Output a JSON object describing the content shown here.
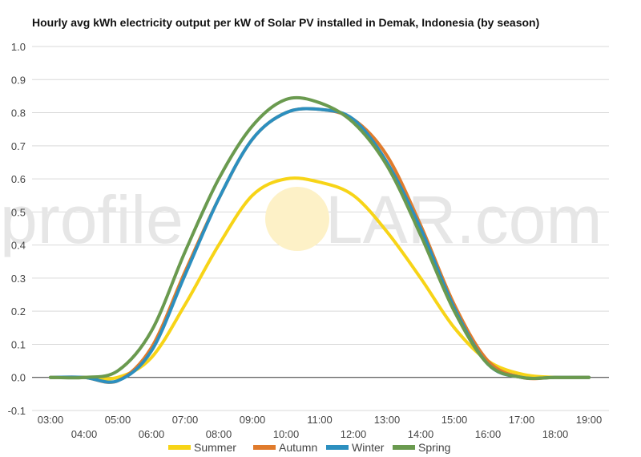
{
  "watermark": {
    "before": "profile",
    "after": "LAR.com",
    "sun_color": "#fdf1c7"
  },
  "chart_data": {
    "type": "line",
    "title": "Hourly avg kWh electricity output per kW of Solar PV installed in Demak, Indonesia (by season)",
    "xlabel": "",
    "ylabel": "",
    "x": [
      "03:00",
      "04:00",
      "05:00",
      "06:00",
      "07:00",
      "08:00",
      "09:00",
      "10:00",
      "11:00",
      "12:00",
      "13:00",
      "14:00",
      "15:00",
      "16:00",
      "17:00",
      "18:00",
      "19:00"
    ],
    "ylim": [
      -0.1,
      1.0
    ],
    "yticks": [
      "-0.1",
      "0.0",
      "0.1",
      "0.2",
      "0.3",
      "0.4",
      "0.5",
      "0.6",
      "0.7",
      "0.8",
      "0.9",
      "1.0"
    ],
    "grid": true,
    "legend_position": "bottom",
    "series": [
      {
        "name": "Summer",
        "color": "#f7d417",
        "values": [
          0.0,
          0.0,
          0.0,
          0.06,
          0.22,
          0.4,
          0.55,
          0.6,
          0.59,
          0.55,
          0.44,
          0.3,
          0.15,
          0.05,
          0.01,
          0.0,
          0.0
        ]
      },
      {
        "name": "Autumn",
        "color": "#e07b2c",
        "values": [
          0.0,
          0.0,
          -0.01,
          0.09,
          0.32,
          0.54,
          0.72,
          0.8,
          0.81,
          0.78,
          0.67,
          0.46,
          0.22,
          0.05,
          0.0,
          0.0,
          0.0
        ]
      },
      {
        "name": "Winter",
        "color": "#2c8fbf",
        "values": [
          0.0,
          0.0,
          -0.01,
          0.08,
          0.31,
          0.54,
          0.72,
          0.8,
          0.81,
          0.78,
          0.65,
          0.45,
          0.21,
          0.04,
          0.0,
          0.0,
          0.0
        ]
      },
      {
        "name": "Spring",
        "color": "#6a9a4f",
        "values": [
          0.0,
          0.0,
          0.02,
          0.14,
          0.38,
          0.6,
          0.76,
          0.84,
          0.83,
          0.77,
          0.64,
          0.43,
          0.2,
          0.04,
          0.0,
          0.0,
          0.0
        ]
      }
    ]
  }
}
